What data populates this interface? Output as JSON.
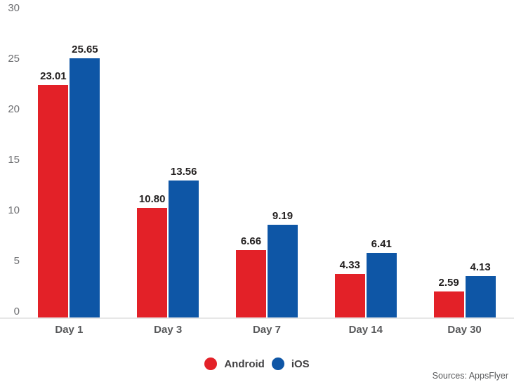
{
  "chart_data": {
    "type": "bar",
    "title": "",
    "categories": [
      "Day 1",
      "Day 3",
      "Day 7",
      "Day 14",
      "Day 30"
    ],
    "series": [
      {
        "name": "Android",
        "color": "#e32128",
        "values": [
          23.01,
          10.8,
          6.66,
          4.33,
          2.59
        ]
      },
      {
        "name": "iOS",
        "color": "#0e56a6",
        "values": [
          25.65,
          13.56,
          9.19,
          6.41,
          4.13
        ]
      }
    ],
    "value_label_format": "2-decimals",
    "ylim": [
      0,
      30
    ],
    "yticks": [
      0,
      5,
      10,
      15,
      20,
      25,
      30
    ],
    "grid": false,
    "legend_position": "bottom-center",
    "source_note": "Sources: AppsFlyer"
  }
}
